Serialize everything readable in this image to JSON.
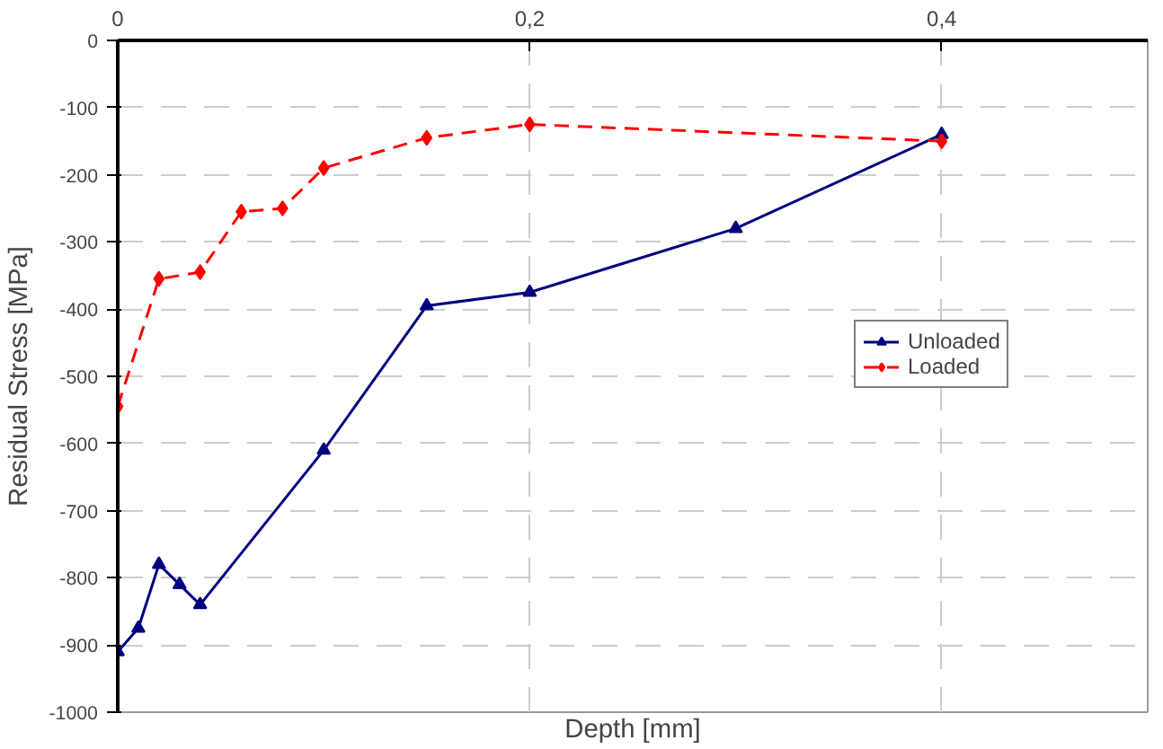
{
  "chart_data": {
    "type": "line",
    "xlabel": "Depth [mm]",
    "ylabel": "Residual Stress [MPa]",
    "xlim": [
      0,
      0.5
    ],
    "xticks": [
      {
        "value": 0,
        "label": "0"
      },
      {
        "value": 0.2,
        "label": "0,2"
      },
      {
        "value": 0.4,
        "label": "0,4"
      }
    ],
    "ylim": [
      -1000,
      0
    ],
    "yticks": [
      -1000,
      -900,
      -800,
      -700,
      -600,
      -500,
      -400,
      -300,
      -200,
      -100,
      0
    ],
    "grid": true,
    "legend": "right",
    "series": [
      {
        "name": "Unloaded",
        "color": "#000080",
        "marker": "triangle",
        "line_style": "solid",
        "x": [
          0,
          0.01,
          0.02,
          0.03,
          0.04,
          0.1,
          0.15,
          0.2,
          0.3,
          0.4
        ],
        "values": [
          -910,
          -875,
          -780,
          -810,
          -840,
          -610,
          -395,
          -375,
          -280,
          -140
        ]
      },
      {
        "name": "Loaded",
        "color": "#ff0000",
        "marker": "diamond",
        "line_style": "dashed",
        "x": [
          0,
          0.02,
          0.04,
          0.06,
          0.08,
          0.1,
          0.15,
          0.2,
          0.4
        ],
        "values": [
          -545,
          -355,
          -345,
          -255,
          -250,
          -190,
          -145,
          -125,
          -150
        ]
      }
    ]
  }
}
